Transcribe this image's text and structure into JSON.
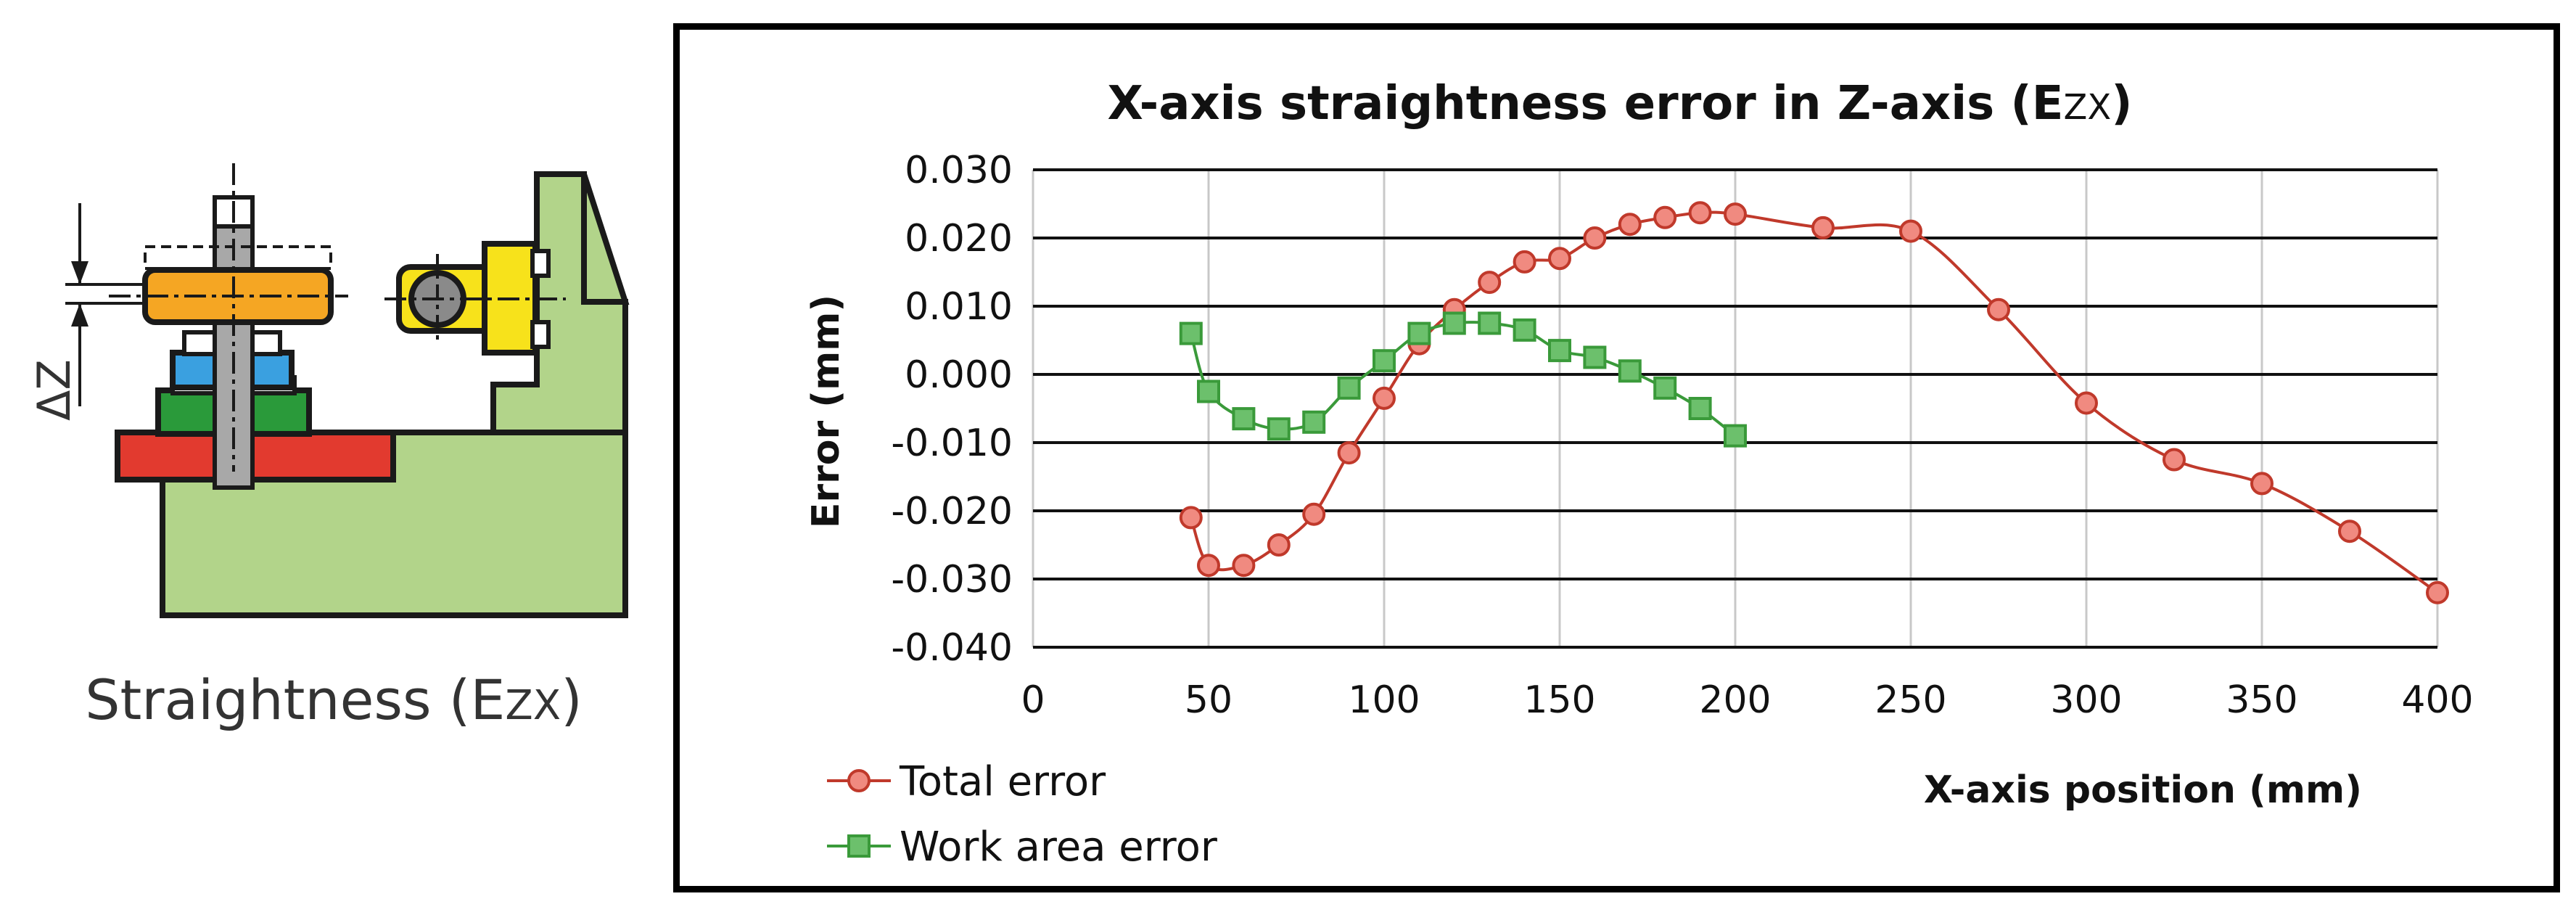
{
  "figure": {
    "caption_main": "Straightness (E",
    "caption_sub": "ZX",
    "caption_close": ")",
    "delta_label": "ΔZ"
  },
  "chart_data": {
    "type": "line",
    "title": "X-axis straightness error in Z-axis (E",
    "title_sub": "ZX",
    "title_close": ")",
    "xlabel": "X-axis position (mm)",
    "ylabel": "Error (mm)",
    "xlim": [
      0,
      400
    ],
    "ylim": [
      -0.04,
      0.03
    ],
    "x_ticks": [
      "0",
      "50",
      "100",
      "150",
      "200",
      "250",
      "300",
      "350",
      "400"
    ],
    "y_ticks": [
      "0.030",
      "0.020",
      "0.010",
      "0.000",
      "-0.010",
      "-0.020",
      "-0.030",
      "-0.040"
    ],
    "grid": true,
    "legend_position": "bottom-left",
    "series": [
      {
        "name": "Total error",
        "color": "#c0392b",
        "marker": "circle",
        "x": [
          45,
          50,
          60,
          70,
          80,
          90,
          100,
          110,
          120,
          130,
          140,
          150,
          160,
          170,
          180,
          190,
          200,
          225,
          250,
          275,
          300,
          325,
          350,
          375,
          400
        ],
        "y": [
          -0.021,
          -0.028,
          -0.028,
          -0.025,
          -0.0205,
          -0.0115,
          -0.0035,
          0.0045,
          0.0095,
          0.0135,
          0.0165,
          0.017,
          0.02,
          0.022,
          0.023,
          0.0237,
          0.0235,
          0.0215,
          0.021,
          0.0095,
          -0.0042,
          -0.0125,
          -0.016,
          -0.023,
          -0.032
        ]
      },
      {
        "name": "Work area error",
        "color": "#3a9a3a",
        "marker": "square",
        "x": [
          45,
          50,
          60,
          70,
          80,
          90,
          100,
          110,
          120,
          130,
          140,
          150,
          160,
          170,
          180,
          190,
          200
        ],
        "y": [
          0.006,
          -0.0025,
          -0.0065,
          -0.008,
          -0.007,
          -0.002,
          0.002,
          0.006,
          0.0075,
          0.0075,
          0.0065,
          0.0035,
          0.0025,
          0.0005,
          -0.002,
          -0.005,
          -0.009
        ]
      }
    ]
  }
}
